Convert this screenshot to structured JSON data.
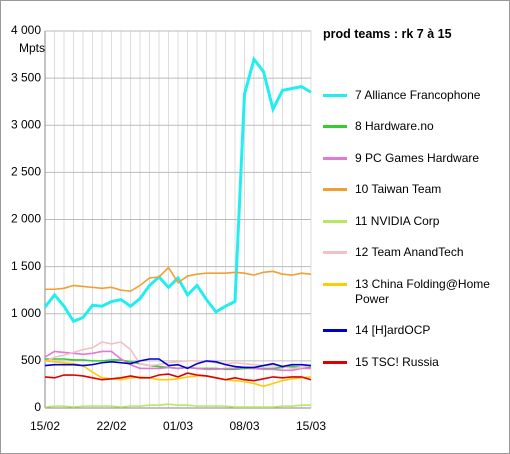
{
  "chart_data": {
    "type": "line",
    "title": "prod teams : rk 7 à 15",
    "y_label": "Mpts",
    "categories": [
      "15/02",
      null,
      null,
      null,
      null,
      null,
      null,
      "22/02",
      null,
      null,
      null,
      null,
      null,
      null,
      "01/03",
      null,
      null,
      null,
      null,
      null,
      null,
      "08/03",
      null,
      null,
      null,
      null,
      null,
      null,
      "15/03"
    ],
    "ylim": [
      0,
      4000
    ],
    "yticks": [
      0,
      500,
      {
        "value": 1000,
        "label": "1 000"
      },
      {
        "value": 1500,
        "label": "1 500"
      },
      {
        "value": 2000,
        "label": "2 000"
      },
      {
        "value": 2500,
        "label": "2 500"
      },
      {
        "value": 3000,
        "label": "3 000"
      },
      {
        "value": 3500,
        "label": "3 500"
      },
      {
        "value": 4000,
        "label": "4 000"
      }
    ],
    "grid": true,
    "series": [
      {
        "name": "7 Alliance Francophone",
        "color": "#22eef2",
        "values": [
          1070,
          1200,
          1080,
          920,
          960,
          1090,
          1080,
          1130,
          1150,
          1080,
          1160,
          1300,
          1390,
          1280,
          1380,
          1200,
          1300,
          1150,
          1020,
          1080,
          1130,
          3330,
          3700,
          3570,
          3170,
          3370,
          3390,
          3410,
          3350
        ]
      },
      {
        "name": "8 Hardware.no",
        "color": "#33cc33",
        "values": [
          520,
          520,
          520,
          510,
          510,
          500,
          500,
          510,
          510,
          490,
          470,
          450,
          440,
          430,
          420,
          430,
          420,
          420,
          420,
          410,
          410,
          420,
          420,
          420,
          420,
          430,
          440,
          430,
          430
        ]
      },
      {
        "name": "9 PC Games Hardware",
        "color": "#e07ad6",
        "values": [
          540,
          600,
          590,
          580,
          570,
          580,
          600,
          600,
          520,
          460,
          420,
          420,
          420,
          430,
          420,
          430,
          420,
          410,
          410,
          420,
          420,
          430,
          420,
          410,
          410,
          400,
          400,
          420,
          420
        ]
      },
      {
        "name": "10 Taiwan Team",
        "color": "#f0a030",
        "values": [
          1260,
          1260,
          1270,
          1300,
          1290,
          1280,
          1270,
          1280,
          1250,
          1240,
          1300,
          1380,
          1390,
          1490,
          1330,
          1400,
          1420,
          1430,
          1430,
          1430,
          1440,
          1430,
          1410,
          1440,
          1450,
          1420,
          1410,
          1430,
          1420
        ]
      },
      {
        "name": "11 NVIDIA Corp",
        "color": "#b8e860",
        "values": [
          10,
          20,
          20,
          10,
          20,
          20,
          20,
          20,
          10,
          20,
          20,
          30,
          30,
          40,
          30,
          30,
          20,
          20,
          20,
          20,
          10,
          10,
          10,
          10,
          10,
          20,
          20,
          30,
          30
        ]
      },
      {
        "name": "12 Team AnandTech",
        "color": "#f4c0c8",
        "values": [
          490,
          540,
          560,
          590,
          620,
          640,
          700,
          680,
          700,
          620,
          470,
          450,
          460,
          480,
          490,
          500,
          500,
          490,
          480,
          470,
          480,
          470,
          460,
          450,
          450,
          440,
          420,
          430,
          450
        ]
      },
      {
        "name": "13 China Folding@Home Power",
        "color": "#ffcc00",
        "values": [
          500,
          490,
          480,
          470,
          450,
          380,
          320,
          310,
          300,
          320,
          330,
          320,
          300,
          300,
          310,
          330,
          340,
          340,
          320,
          300,
          290,
          280,
          260,
          230,
          260,
          290,
          310,
          320,
          330
        ]
      },
      {
        "name": "14 [H]ardOCP",
        "color": "#0000cc",
        "values": [
          450,
          460,
          460,
          460,
          450,
          460,
          480,
          490,
          480,
          470,
          500,
          520,
          520,
          450,
          460,
          420,
          470,
          500,
          490,
          460,
          440,
          430,
          430,
          450,
          470,
          440,
          460,
          460,
          450
        ]
      },
      {
        "name": "15 TSC! Russia",
        "color": "#e00000",
        "values": [
          330,
          320,
          350,
          350,
          340,
          320,
          300,
          310,
          320,
          340,
          320,
          320,
          350,
          360,
          330,
          370,
          350,
          340,
          320,
          300,
          320,
          300,
          290,
          310,
          330,
          320,
          330,
          330,
          300
        ]
      }
    ]
  }
}
